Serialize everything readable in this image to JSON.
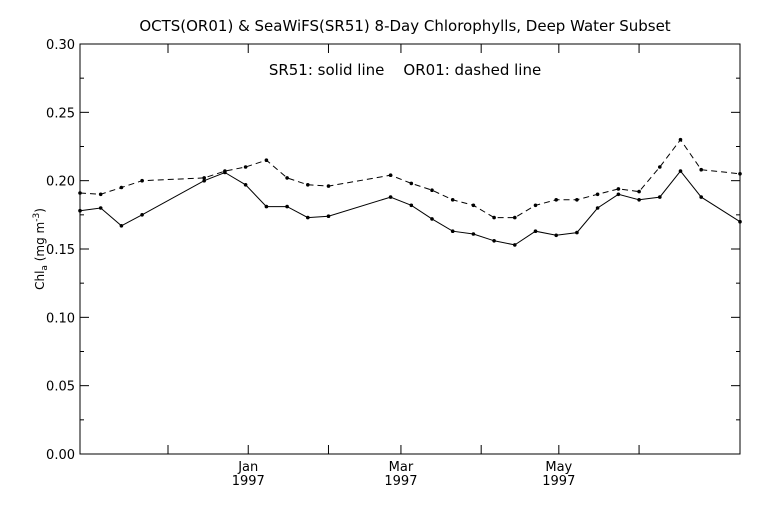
{
  "chart_data": {
    "type": "line",
    "title": "OCTS(OR01) & SeaWiFS(SR51) 8-Day Chlorophylls, Deep Water Subset",
    "annotation": "SR51: solid line    OR01: dashed line",
    "ylabel_main": "Chl",
    "ylabel_sub": "a",
    "ylabel_units": " (mg m",
    "ylabel_exp": "-3",
    "ylabel_close": ")",
    "xlabel": "",
    "ylim": [
      0,
      0.3
    ],
    "yticks": [
      "0.00",
      "0.05",
      "0.10",
      "0.15",
      "0.20",
      "0.25",
      "0.30"
    ],
    "xlim": [
      "1996-10-28",
      "1997-07-10"
    ],
    "xticks": [
      {
        "date": "1996-12-01",
        "label": "",
        "sublabel": ""
      },
      {
        "date": "1997-01-01",
        "label": "Jan",
        "sublabel": "1997"
      },
      {
        "date": "1997-02-01",
        "label": "",
        "sublabel": ""
      },
      {
        "date": "1997-03-01",
        "label": "Mar",
        "sublabel": "1997"
      },
      {
        "date": "1997-04-01",
        "label": "",
        "sublabel": ""
      },
      {
        "date": "1997-05-01",
        "label": "May",
        "sublabel": "1997"
      },
      {
        "date": "1997-06-01",
        "label": "",
        "sublabel": ""
      }
    ],
    "grid": false,
    "series": [
      {
        "name": "SR51",
        "style": "solid",
        "x": [
          "1996-10-28",
          "1996-11-05",
          "1996-11-13",
          "1996-11-21",
          "1996-12-15",
          "1996-12-23",
          "1996-12-31",
          "1997-01-08",
          "1997-01-16",
          "1997-01-24",
          "1997-02-01",
          "1997-02-25",
          "1997-03-05",
          "1997-03-13",
          "1997-03-21",
          "1997-03-29",
          "1997-04-06",
          "1997-04-14",
          "1997-04-22",
          "1997-04-30",
          "1997-05-08",
          "1997-05-16",
          "1997-05-24",
          "1997-06-01",
          "1997-06-09",
          "1997-06-17",
          "1997-06-25",
          "1997-07-10"
        ],
        "y": [
          0.178,
          0.18,
          0.167,
          0.175,
          0.2,
          0.206,
          0.197,
          0.181,
          0.181,
          0.173,
          0.174,
          0.188,
          0.182,
          0.172,
          0.163,
          0.161,
          0.156,
          0.153,
          0.163,
          0.16,
          0.162,
          0.18,
          0.19,
          0.186,
          0.188,
          0.207,
          0.188,
          0.17
        ]
      },
      {
        "name": "OR01",
        "style": "dashed",
        "x": [
          "1996-10-28",
          "1996-11-05",
          "1996-11-13",
          "1996-11-21",
          "1996-12-15",
          "1996-12-23",
          "1996-12-31",
          "1997-01-08",
          "1997-01-16",
          "1997-01-24",
          "1997-02-01",
          "1997-02-25",
          "1997-03-05",
          "1997-03-13",
          "1997-03-21",
          "1997-03-29",
          "1997-04-06",
          "1997-04-14",
          "1997-04-22",
          "1997-04-30",
          "1997-05-08",
          "1997-05-16",
          "1997-05-24",
          "1997-06-01",
          "1997-06-09",
          "1997-06-17",
          "1997-06-25",
          "1997-07-10"
        ],
        "y": [
          0.191,
          0.19,
          0.195,
          0.2,
          0.202,
          0.207,
          0.21,
          0.215,
          0.202,
          0.197,
          0.196,
          0.204,
          0.198,
          0.193,
          0.186,
          0.182,
          0.173,
          0.173,
          0.182,
          0.186,
          0.186,
          0.19,
          0.194,
          0.192,
          0.21,
          0.23,
          0.208,
          0.205
        ]
      }
    ]
  }
}
